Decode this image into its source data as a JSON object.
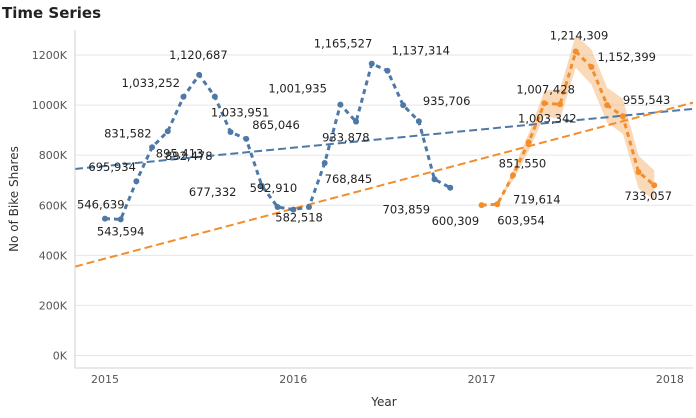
{
  "title": "Time Series",
  "chart_data": {
    "type": "line",
    "title": "Time Series",
    "xlabel": "Year",
    "ylabel": "No of Bike Shares",
    "x_ticks": [
      "2015",
      "2016",
      "2017",
      "2018"
    ],
    "y_ticks": [
      "0K",
      "200K",
      "400K",
      "600K",
      "800K",
      "1000K",
      "1200K"
    ],
    "ylim": [
      -50000,
      1300000
    ],
    "grid": "horizontal",
    "series": [
      {
        "color": "#4e79a7",
        "style": "dotted-line",
        "x": [
          "2015-01",
          "2015-02",
          "2015-03",
          "2015-04",
          "2015-05",
          "2015-06",
          "2015-07",
          "2015-08",
          "2015-09",
          "2015-10",
          "2015-11",
          "2015-12",
          "2016-01",
          "2016-02",
          "2016-03",
          "2016-04",
          "2016-05",
          "2016-06",
          "2016-07",
          "2016-08",
          "2016-09",
          "2016-10",
          "2016-11",
          "2016-12"
        ],
        "values": [
          546639,
          543594,
          695934,
          831582,
          895413,
          1033252,
          1120687,
          1033951,
          892478,
          865046,
          677332,
          592910,
          582518,
          592910,
          768845,
          1001935,
          933878,
          1165527,
          1137314,
          1000000,
          935706,
          703859,
          670000,
          null
        ],
        "labels": [
          {
            "i": 0,
            "text": "546,639"
          },
          {
            "i": 1,
            "text": "543,594"
          },
          {
            "i": 2,
            "text": "695,934"
          },
          {
            "i": 3,
            "text": "831,582"
          },
          {
            "i": 4,
            "text": "895,413"
          },
          {
            "i": 5,
            "text": "1,033,252"
          },
          {
            "i": 6,
            "text": "1,120,687"
          },
          {
            "i": 7,
            "text": "1,033,951"
          },
          {
            "i": 8,
            "text": "892,478"
          },
          {
            "i": 9,
            "text": "865,046"
          },
          {
            "i": 10,
            "text": "677,332"
          },
          {
            "i": 11,
            "text": "592,910"
          },
          {
            "i": 12,
            "text": "582,518"
          },
          {
            "i": 14,
            "text": "768,845"
          },
          {
            "i": 15,
            "text": "1,001,935"
          },
          {
            "i": 16,
            "text": "933,878"
          },
          {
            "i": 17,
            "text": "1,165,527"
          },
          {
            "i": 18,
            "text": "1,137,314"
          },
          {
            "i": 20,
            "text": "935,706"
          },
          {
            "i": 21,
            "text": "703,859"
          }
        ]
      },
      {
        "color": "#f28e2b",
        "style": "dotted-line-forecast",
        "x": [
          "2017-01",
          "2017-02",
          "2017-03",
          "2017-04",
          "2017-05",
          "2017-06",
          "2017-07",
          "2017-08",
          "2017-09",
          "2017-10",
          "2017-11",
          "2017-12"
        ],
        "values": [
          600309,
          603954,
          719614,
          851550,
          1007428,
          1003342,
          1214309,
          1152399,
          1000000,
          955543,
          733057,
          680000
        ],
        "labels": [
          {
            "i": 0,
            "text": "600,309"
          },
          {
            "i": 1,
            "text": "603,954"
          },
          {
            "i": 2,
            "text": "719,614"
          },
          {
            "i": 3,
            "text": "851,550"
          },
          {
            "i": 4,
            "text": "1,007,428"
          },
          {
            "i": 5,
            "text": "1,003,342"
          },
          {
            "i": 6,
            "text": "1,214,309"
          },
          {
            "i": 7,
            "text": "1,152,399"
          },
          {
            "i": 9,
            "text": "955,543"
          },
          {
            "i": 10,
            "text": "733,057"
          }
        ]
      }
    ],
    "trend_lines": [
      {
        "color": "#4e79a7",
        "from": [
          "2015-01",
          745000
        ],
        "to": [
          "2018-12",
          985000
        ]
      },
      {
        "color": "#f28e2b",
        "from": [
          "2015-01",
          355000
        ],
        "to": [
          "2018-12",
          1010000
        ]
      }
    ],
    "band_color": "#f4b97c"
  }
}
